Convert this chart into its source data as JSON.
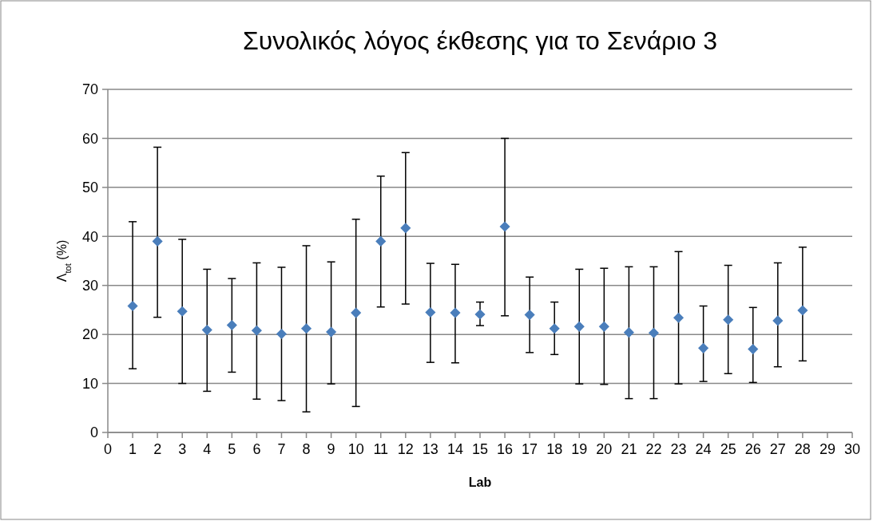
{
  "chart_data": {
    "type": "scatter",
    "title": "Συνολικός λόγος έκθεσης για το Σενάριο 3",
    "xlabel": "Lab",
    "ylabel": "Λ$_{tot}$ (%)",
    "x": [
      1,
      2,
      3,
      4,
      5,
      6,
      7,
      8,
      9,
      10,
      11,
      12,
      13,
      14,
      15,
      16,
      17,
      18,
      19,
      20,
      21,
      22,
      23,
      24,
      25,
      26,
      27,
      28
    ],
    "series": [
      {
        "color": "#4a7ebb",
        "values": [
          25.8,
          39,
          24.7,
          20.9,
          21.9,
          20.8,
          20.1,
          21.2,
          20.5,
          24.4,
          39,
          41.7,
          24.5,
          24.4,
          24.1,
          42,
          24,
          21.2,
          21.6,
          21.6,
          20.4,
          20.3,
          23.4,
          17.2,
          23,
          17,
          22.8,
          24.9
        ],
        "errors": [
          [
            13,
            43
          ],
          [
            23.5,
            58.2
          ],
          [
            10,
            39.4
          ],
          [
            8.4,
            33.3
          ],
          [
            12.3,
            31.4
          ],
          [
            6.8,
            34.6
          ],
          [
            6.5,
            33.7
          ],
          [
            4.2,
            38.1
          ],
          [
            9.9,
            34.8
          ],
          [
            5.3,
            43.5
          ],
          [
            25.6,
            52.3
          ],
          [
            26.2,
            57.1
          ],
          [
            14.3,
            34.5
          ],
          [
            14.2,
            34.3
          ],
          [
            21.8,
            26.6
          ],
          [
            23.8,
            60
          ],
          [
            16.3,
            31.7
          ],
          [
            15.9,
            26.6
          ],
          [
            9.9,
            33.3
          ],
          [
            9.8,
            33.5
          ],
          [
            6.9,
            33.8
          ],
          [
            6.9,
            33.8
          ],
          [
            9.9,
            36.9
          ],
          [
            10.4,
            25.8
          ],
          [
            12,
            34.1
          ],
          [
            10.2,
            25.5
          ],
          [
            13.4,
            34.6
          ],
          [
            14.6,
            37.8
          ]
        ]
      }
    ],
    "xlim": [
      0,
      30
    ],
    "xticks": [
      0,
      1,
      2,
      3,
      4,
      5,
      6,
      7,
      8,
      9,
      10,
      11,
      12,
      13,
      14,
      15,
      16,
      17,
      18,
      19,
      20,
      21,
      22,
      23,
      24,
      25,
      26,
      27,
      28,
      29,
      30
    ],
    "ylim": [
      0,
      70
    ],
    "yticks": [
      0,
      10,
      20,
      30,
      40,
      50,
      60,
      70
    ],
    "grid": "y",
    "marker": "diamond"
  }
}
